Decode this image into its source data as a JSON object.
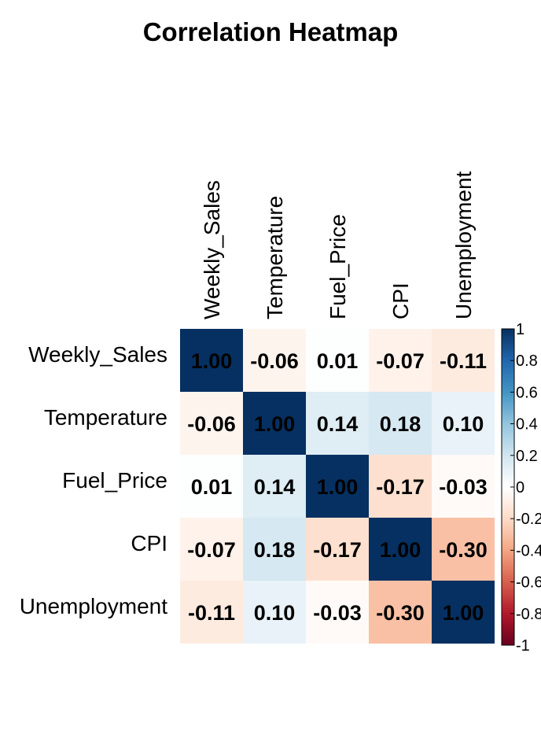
{
  "chart_data": {
    "type": "heatmap",
    "title": "Correlation Heatmap",
    "variables": [
      "Weekly_Sales",
      "Temperature",
      "Fuel_Price",
      "CPI",
      "Unemployment"
    ],
    "matrix": [
      [
        1.0,
        -0.06,
        0.01,
        -0.07,
        -0.11
      ],
      [
        -0.06,
        1.0,
        0.14,
        0.18,
        0.1
      ],
      [
        0.01,
        0.14,
        1.0,
        -0.17,
        -0.03
      ],
      [
        -0.07,
        0.18,
        -0.17,
        1.0,
        -0.3
      ],
      [
        -0.11,
        0.1,
        -0.03,
        -0.3,
        1.0
      ]
    ],
    "labels": [
      [
        "1.00",
        "-0.06",
        "0.01",
        "-0.07",
        "-0.11"
      ],
      [
        "-0.06",
        "1.00",
        "0.14",
        "0.18",
        "0.10"
      ],
      [
        "0.01",
        "0.14",
        "1.00",
        "-0.17",
        "-0.03"
      ],
      [
        "-0.07",
        "0.18",
        "-0.17",
        "1.00",
        "-0.30"
      ],
      [
        "-0.11",
        "0.10",
        "-0.03",
        "-0.30",
        "1.00"
      ]
    ],
    "colorbar": {
      "range": [
        -1,
        1
      ],
      "ticks": [
        "1",
        "0.8",
        "0.6",
        "0.4",
        "0.2",
        "0",
        "-0.2",
        "-0.4",
        "-0.6",
        "-0.8",
        "-1"
      ],
      "colors": [
        "#67001F",
        "#B2182B",
        "#D6604D",
        "#F4A582",
        "#FDDBC7",
        "#FFFFFF",
        "#D1E5F0",
        "#92C5DE",
        "#4393C3",
        "#2166AC",
        "#053061"
      ]
    },
    "legend": "right",
    "grid": false
  }
}
